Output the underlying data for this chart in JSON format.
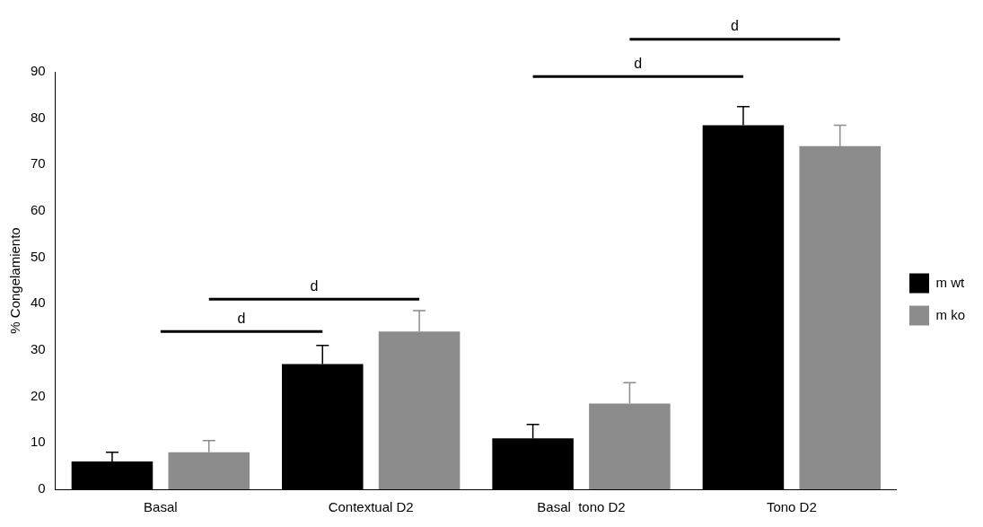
{
  "chart_data": {
    "type": "bar",
    "ylabel": "% Congelamiento",
    "categories": [
      "Basal",
      "Contextual D2",
      "Basal  tono D2",
      "Tono D2"
    ],
    "series": [
      {
        "name": "m wt",
        "color": "#000000",
        "values": [
          6,
          27,
          11,
          78.5
        ],
        "errors": [
          2,
          4,
          3,
          4
        ]
      },
      {
        "name": "m ko",
        "color": "#8c8c8c",
        "values": [
          8,
          34,
          18.5,
          74
        ],
        "errors": [
          2.5,
          4.5,
          4.5,
          4.5
        ]
      }
    ],
    "ylim": [
      0,
      90
    ],
    "yticks": [
      0,
      10,
      20,
      30,
      40,
      50,
      60,
      70,
      80,
      90
    ],
    "grid": false,
    "legend": "right",
    "annotations": [
      "d",
      "d",
      "d",
      "d"
    ]
  }
}
